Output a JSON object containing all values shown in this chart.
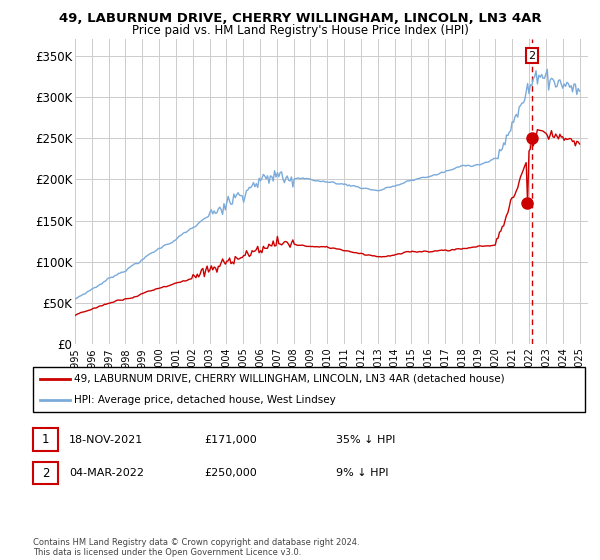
{
  "title": "49, LABURNUM DRIVE, CHERRY WILLINGHAM, LINCOLN, LN3 4AR",
  "subtitle": "Price paid vs. HM Land Registry's House Price Index (HPI)",
  "ylabel_ticks": [
    "£0",
    "£50K",
    "£100K",
    "£150K",
    "£200K",
    "£250K",
    "£300K",
    "£350K"
  ],
  "ytick_values": [
    0,
    50000,
    100000,
    150000,
    200000,
    250000,
    300000,
    350000
  ],
  "ylim": [
    0,
    370000
  ],
  "legend_line1": "49, LABURNUM DRIVE, CHERRY WILLINGHAM, LINCOLN, LN3 4AR (detached house)",
  "legend_line2": "HPI: Average price, detached house, West Lindsey",
  "transaction1_label": "1",
  "transaction1_date": "18-NOV-2021",
  "transaction1_price": "£171,000",
  "transaction1_hpi": "35% ↓ HPI",
  "transaction2_label": "2",
  "transaction2_date": "04-MAR-2022",
  "transaction2_price": "£250,000",
  "transaction2_hpi": "9% ↓ HPI",
  "footer": "Contains HM Land Registry data © Crown copyright and database right 2024.\nThis data is licensed under the Open Government Licence v3.0.",
  "red_color": "#cc0000",
  "blue_color": "#7aabdb",
  "dashed_red": "#cc0000",
  "grid_color": "#cccccc",
  "background_color": "#ffffff",
  "sale1_year": 2021.88,
  "sale1_price": 171000,
  "sale2_year": 2022.17,
  "sale2_price": 250000
}
